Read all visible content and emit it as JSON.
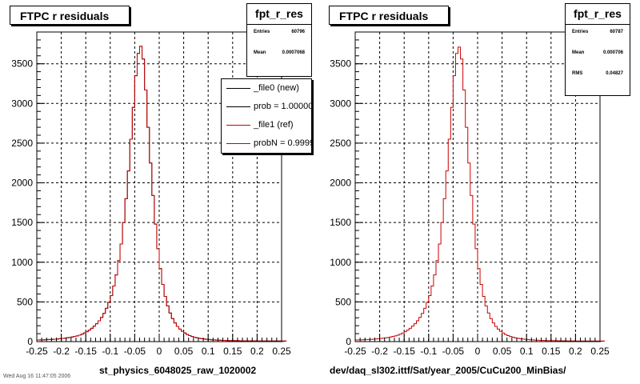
{
  "colors": {
    "new": "#000000",
    "ref": "#cc0000",
    "grid": "#000000",
    "background": "#ffffff"
  },
  "footer_text": "Wed Aug 16 11:47:05 2006",
  "pads": [
    {
      "title": "FTPC r residuals",
      "stats": {
        "name": "fpt_r_res",
        "rows": [
          {
            "label": "Entries",
            "value": "60796"
          },
          {
            "label": "Mean",
            "value": "0.0007068"
          }
        ]
      },
      "legend": [
        {
          "label": "_file0 (new)",
          "color": "#000000"
        },
        {
          "label": "prob = 1.000000",
          "color": "#000000"
        },
        {
          "label": "_file1 (ref)",
          "color": "#cc0000"
        },
        {
          "label": "probN = 0.999999",
          "color": "#cc0000"
        }
      ],
      "xtitle": "st_physics_6048025_raw_1020002"
    },
    {
      "title": "FTPC r residuals",
      "stats": {
        "name": "fpt_r_res",
        "rows": [
          {
            "label": "Entries",
            "value": "60787"
          },
          {
            "label": "Mean",
            "value": "0.000706"
          },
          {
            "label": "RMS",
            "value": "0.04827"
          }
        ]
      },
      "legend": [],
      "xtitle": "dev/daq_sl302.ittf/Sat/year_2005/CuCu200_MinBias/"
    }
  ],
  "chart_data": [
    {
      "type": "bar",
      "histogram": true,
      "title": "FTPC r residuals",
      "xlabel": "st_physics_6048025_raw_1020002",
      "ylabel": "",
      "xlim": [
        -0.25,
        0.25
      ],
      "ylim": [
        0,
        3900
      ],
      "xticks": [
        -0.25,
        -0.2,
        -0.15,
        -0.1,
        -0.05,
        0,
        0.05,
        0.1,
        0.15,
        0.2,
        0.25
      ],
      "xtick_labels": [
        "-0.25",
        "-0.2",
        "-0.15",
        "-0.1",
        "-0.05",
        "0",
        "0.05",
        "0.1",
        "0.15",
        "0.2",
        "0.25"
      ],
      "yticks": [
        0,
        500,
        1000,
        1500,
        2000,
        2500,
        3000,
        3500
      ],
      "ytick_labels": [
        "0",
        "500",
        "1000",
        "1500",
        "2000",
        "2500",
        "3000",
        "3500"
      ],
      "grid": true,
      "bins": 100,
      "series": [
        {
          "name": "_file0 (new)",
          "color": "#000000",
          "values": [
            20,
            22,
            22,
            24,
            26,
            27,
            28,
            30,
            33,
            36,
            40,
            43,
            48,
            52,
            58,
            65,
            72,
            81,
            93,
            108,
            125,
            145,
            168,
            195,
            225,
            262,
            305,
            355,
            420,
            495,
            580,
            700,
            840,
            1020,
            1230,
            1500,
            1800,
            2150,
            2550,
            2950,
            3350,
            3630,
            3720,
            3560,
            3170,
            2700,
            2250,
            1840,
            1480,
            1170,
            920,
            720,
            570,
            450,
            360,
            290,
            235,
            192,
            158,
            130,
            108,
            90,
            76,
            64,
            55,
            48,
            42,
            37,
            33,
            29,
            26,
            23,
            21,
            19,
            17,
            16,
            15,
            14,
            13,
            12,
            12,
            11,
            11,
            10,
            10,
            10,
            9,
            9,
            9,
            9,
            8,
            8,
            8,
            8,
            8,
            7,
            7,
            7,
            7,
            7,
            7,
            7
          ]
        },
        {
          "name": "_file1 (ref)",
          "color": "#cc0000",
          "values": [
            20,
            22,
            22,
            24,
            26,
            27,
            28,
            30,
            33,
            36,
            40,
            43,
            48,
            52,
            58,
            65,
            72,
            81,
            93,
            108,
            125,
            145,
            168,
            195,
            225,
            262,
            305,
            355,
            420,
            495,
            580,
            700,
            840,
            1020,
            1230,
            1500,
            1800,
            2150,
            2550,
            2950,
            3350,
            3630,
            3720,
            3560,
            3170,
            2700,
            2250,
            1840,
            1480,
            1170,
            920,
            720,
            570,
            450,
            360,
            290,
            235,
            192,
            158,
            130,
            108,
            90,
            76,
            64,
            55,
            48,
            42,
            37,
            33,
            29,
            26,
            23,
            21,
            19,
            17,
            16,
            15,
            14,
            13,
            12,
            12,
            11,
            11,
            10,
            10,
            10,
            9,
            9,
            9,
            9,
            8,
            8,
            8,
            8,
            8,
            7,
            7,
            7,
            7,
            7,
            7,
            7
          ]
        }
      ]
    },
    {
      "type": "bar",
      "histogram": true,
      "title": "FTPC r residuals",
      "xlabel": "dev/daq_sl302.ittf/Sat/year_2005/CuCu200_MinBias/",
      "ylabel": "",
      "xlim": [
        -0.25,
        0.25
      ],
      "ylim": [
        0,
        3900
      ],
      "xticks": [
        -0.25,
        -0.2,
        -0.15,
        -0.1,
        -0.05,
        0,
        0.05,
        0.1,
        0.15,
        0.2,
        0.25
      ],
      "xtick_labels": [
        "-0.25",
        "-0.2",
        "-0.15",
        "-0.1",
        "-0.05",
        "0",
        "0.05",
        "0.1",
        "0.15",
        "0.2",
        "0.25"
      ],
      "yticks": [
        0,
        500,
        1000,
        1500,
        2000,
        2500,
        3000,
        3500
      ],
      "ytick_labels": [
        "0",
        "500",
        "1000",
        "1500",
        "2000",
        "2500",
        "3000",
        "3500"
      ],
      "grid": true,
      "bins": 100,
      "series": [
        {
          "name": "fpt_r_res",
          "color": "#cc0000",
          "values": [
            20,
            22,
            22,
            24,
            26,
            27,
            28,
            30,
            33,
            36,
            40,
            43,
            48,
            52,
            58,
            65,
            72,
            81,
            93,
            108,
            125,
            145,
            168,
            195,
            225,
            262,
            305,
            355,
            420,
            495,
            580,
            700,
            840,
            1020,
            1230,
            1500,
            1800,
            2150,
            2550,
            2950,
            3350,
            3630,
            3710,
            3560,
            3170,
            2700,
            2250,
            1840,
            1480,
            1170,
            920,
            720,
            570,
            450,
            360,
            290,
            235,
            192,
            158,
            130,
            108,
            90,
            76,
            64,
            55,
            48,
            42,
            37,
            33,
            29,
            26,
            23,
            21,
            19,
            17,
            16,
            15,
            14,
            13,
            12,
            12,
            11,
            11,
            10,
            10,
            10,
            9,
            9,
            9,
            9,
            8,
            8,
            8,
            8,
            8,
            7,
            7,
            7,
            7,
            7,
            7,
            7
          ]
        }
      ]
    }
  ]
}
